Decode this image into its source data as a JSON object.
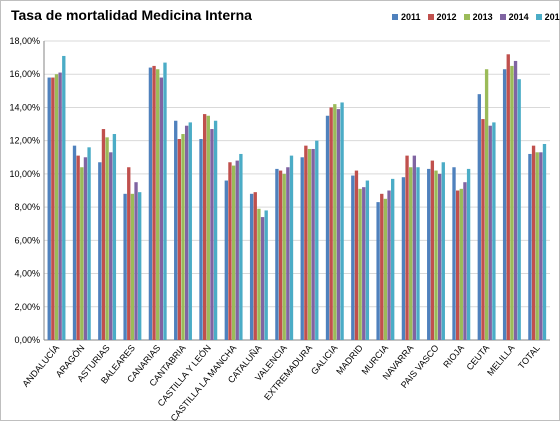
{
  "chart_data": {
    "type": "bar",
    "title": "Tasa de mortalidad Medicina Interna",
    "xlabel": "",
    "ylabel": "",
    "ylim": [
      0,
      18
    ],
    "y_ticks": [
      "0,00%",
      "2,00%",
      "4,00%",
      "6,00%",
      "8,00%",
      "10,00%",
      "12,00%",
      "14,00%",
      "16,00%",
      "18,00%"
    ],
    "grid": "horizontal",
    "legend_position": "top-right",
    "categories": [
      "ANDALUCÍA",
      "ARAGÓN",
      "ASTURIAS",
      "BALEARES",
      "CANARIAS",
      "CANTABRIA",
      "CASTILLA Y LEÓN",
      "CASTILLA LA MANCHA",
      "CATALUÑA",
      "VALENCIA",
      "EXTREMADURA",
      "GALICIA",
      "MADRID",
      "MURCIA",
      "NAVARRA",
      "PAIS VASCO",
      "RIOJA",
      "CEUTA",
      "MELILLA",
      "TOTAL"
    ],
    "series": [
      {
        "name": "2011",
        "color": "#4f81bd",
        "values": [
          15.8,
          11.7,
          10.7,
          8.8,
          16.4,
          13.2,
          12.1,
          9.6,
          8.8,
          10.3,
          11.0,
          13.5,
          9.9,
          8.3,
          9.8,
          10.3,
          10.4,
          14.8,
          16.3,
          11.2
        ]
      },
      {
        "name": "2012",
        "color": "#c0504d",
        "values": [
          15.8,
          11.1,
          12.7,
          10.4,
          16.5,
          12.1,
          13.6,
          10.7,
          8.9,
          10.2,
          11.7,
          14.0,
          10.2,
          8.8,
          11.1,
          10.8,
          9.0,
          13.3,
          17.2,
          11.7
        ]
      },
      {
        "name": "2013",
        "color": "#9bbb59",
        "values": [
          16.0,
          10.4,
          12.2,
          8.8,
          16.3,
          12.4,
          13.5,
          10.5,
          7.9,
          10.0,
          11.5,
          14.2,
          9.1,
          8.5,
          10.4,
          10.2,
          9.1,
          16.3,
          16.5,
          11.3
        ]
      },
      {
        "name": "2014",
        "color": "#8064a2",
        "values": [
          16.1,
          11.0,
          11.3,
          9.5,
          15.8,
          12.9,
          12.7,
          10.8,
          7.4,
          10.4,
          11.5,
          13.9,
          9.2,
          9.0,
          11.1,
          10.0,
          9.5,
          12.9,
          16.8,
          11.3
        ]
      },
      {
        "name": "2015",
        "color": "#4bacc6",
        "values": [
          17.1,
          11.6,
          12.4,
          8.9,
          16.7,
          13.1,
          13.2,
          11.2,
          7.8,
          11.1,
          12.0,
          14.3,
          9.6,
          9.7,
          10.4,
          10.7,
          10.3,
          13.1,
          15.7,
          11.8
        ]
      }
    ]
  }
}
